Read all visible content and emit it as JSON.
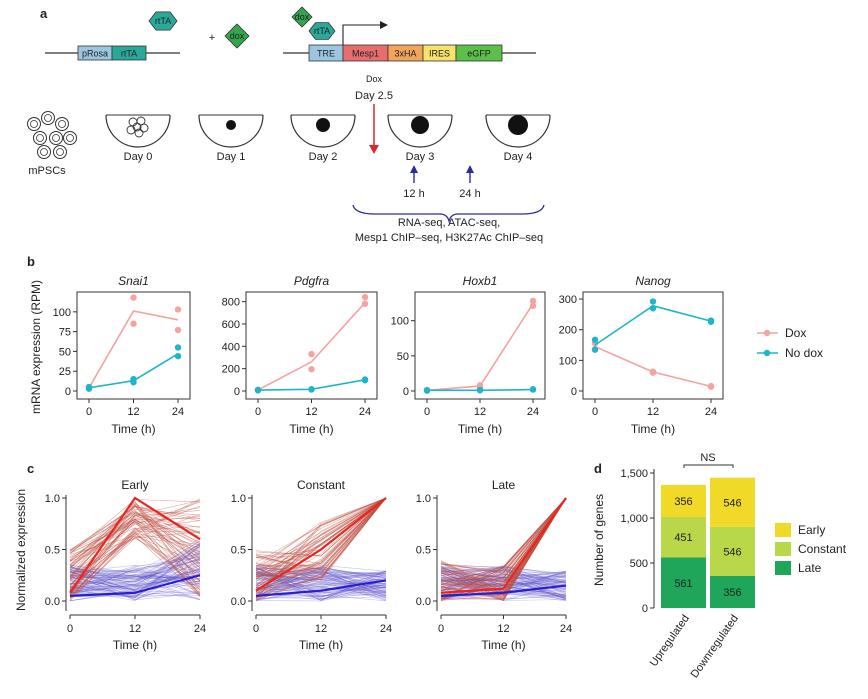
{
  "panels": {
    "a": {
      "letter": "a",
      "construct1": {
        "promoter": "pRosa",
        "gene": "rtTA"
      },
      "protein_rtTA": "rtTA",
      "plus": "+",
      "drug": "dox",
      "construct2": {
        "complex_dox": "dox",
        "complex_rtTA": "rtTA",
        "blocks": [
          "TRE",
          "Mesp1",
          "3xHA",
          "IRES",
          "eGFP"
        ]
      },
      "dox_label": "Dox",
      "dox_day": "Day 2.5",
      "cells_label": "mPSCs",
      "days": [
        "Day 0",
        "Day 1",
        "Day 2",
        "Day 3",
        "Day 4"
      ],
      "timepoints": [
        "12 h",
        "24 h"
      ],
      "assays_line1": "RNA-seq, ATAC-seq,",
      "assays_line2": "Mesp1 ChIP–seq, H3K27Ac ChIP–seq"
    },
    "b": {
      "letter": "b",
      "ylabel": "mRNA expression (RPM)",
      "xlabel": "Time (h)",
      "legend": [
        "Dox",
        "No dox"
      ]
    },
    "c": {
      "letter": "c",
      "ylabel": "Normalized expression",
      "xlabel": "Time (h)"
    },
    "d": {
      "letter": "d",
      "ylabel": "Number of genes",
      "ns_label": "NS",
      "legend": [
        "Early",
        "Constant",
        "Late"
      ]
    }
  },
  "colors": {
    "dox": "#f4a3a0",
    "no_dox": "#1fb5c9",
    "early": "#f1da27",
    "constant": "#b8d84a",
    "late": "#1fa65a",
    "trajectory_red": "#b83a2b",
    "trajectory_blue": "#4a3ec4",
    "dox_arrow": "#d42b2b",
    "timepoint_arrow": "#2d2a9e"
  },
  "chart_data": [
    {
      "type": "line",
      "title": "Snai1",
      "xlabel": "Time (h)",
      "ylabel": "mRNA expression (RPM)",
      "x": [
        0,
        12,
        24
      ],
      "ylim": [
        0,
        120
      ],
      "yticks": [
        0,
        25,
        50,
        75,
        100
      ],
      "series": [
        {
          "name": "Dox",
          "values": [
            4,
            101,
            90
          ],
          "points": [
            [
              0,
              3
            ],
            [
              0,
              5
            ],
            [
              12,
              118
            ],
            [
              12,
              85
            ],
            [
              24,
              103
            ],
            [
              24,
              77
            ]
          ]
        },
        {
          "name": "No dox",
          "values": [
            4,
            13,
            47
          ],
          "points": [
            [
              0,
              3
            ],
            [
              0,
              5
            ],
            [
              12,
              11
            ],
            [
              12,
              15
            ],
            [
              24,
              55
            ],
            [
              24,
              44
            ]
          ]
        }
      ]
    },
    {
      "type": "line",
      "title": "Pdgfra",
      "xlabel": "Time (h)",
      "x": [
        0,
        12,
        24
      ],
      "ylim": [
        0,
        850
      ],
      "yticks": [
        0,
        200,
        400,
        600,
        800
      ],
      "series": [
        {
          "name": "Dox",
          "values": [
            10,
            260,
            790
          ],
          "points": [
            [
              0,
              8
            ],
            [
              0,
              12
            ],
            [
              12,
              330
            ],
            [
              12,
              195
            ],
            [
              24,
              840
            ],
            [
              24,
              780
            ]
          ]
        },
        {
          "name": "No dox",
          "values": [
            8,
            15,
            100
          ],
          "points": [
            [
              0,
              6
            ],
            [
              0,
              9
            ],
            [
              12,
              14
            ],
            [
              12,
              16
            ],
            [
              24,
              103
            ],
            [
              24,
              96
            ]
          ]
        }
      ]
    },
    {
      "type": "line",
      "title": "Hoxb1",
      "xlabel": "Time (h)",
      "x": [
        0,
        12,
        24
      ],
      "ylim": [
        0,
        135
      ],
      "yticks": [
        0,
        50,
        100
      ],
      "series": [
        {
          "name": "Dox",
          "values": [
            1,
            7,
            124
          ],
          "points": [
            [
              0,
              1
            ],
            [
              0,
              1.5
            ],
            [
              12,
              8
            ],
            [
              12,
              5
            ],
            [
              24,
              128
            ],
            [
              24,
              121
            ]
          ]
        },
        {
          "name": "No dox",
          "values": [
            1,
            1,
            2
          ],
          "points": [
            [
              0,
              0.5
            ],
            [
              0,
              1
            ],
            [
              12,
              1
            ],
            [
              12,
              1.5
            ],
            [
              24,
              2
            ],
            [
              24,
              2.5
            ]
          ]
        }
      ]
    },
    {
      "type": "line",
      "title": "Nanog",
      "xlabel": "Time (h)",
      "x": [
        0,
        12,
        24
      ],
      "ylim": [
        0,
        310
      ],
      "yticks": [
        0,
        100,
        200,
        300
      ],
      "series": [
        {
          "name": "Dox",
          "values": [
            145,
            62,
            15
          ],
          "points": [
            [
              0,
              135
            ],
            [
              0,
              155
            ],
            [
              12,
              60
            ],
            [
              12,
              63
            ],
            [
              24,
              14
            ],
            [
              24,
              16
            ]
          ]
        },
        {
          "name": "No dox",
          "values": [
            150,
            278,
            228
          ],
          "points": [
            [
              0,
              135
            ],
            [
              0,
              167
            ],
            [
              12,
              292
            ],
            [
              12,
              270
            ],
            [
              24,
              230
            ],
            [
              24,
              226
            ]
          ]
        }
      ]
    },
    {
      "type": "line",
      "title": "Early",
      "xlabel": "Time (h)",
      "ylabel": "Normalized expression",
      "x": [
        0,
        12,
        24
      ],
      "ylim": [
        0,
        1
      ],
      "yticks": [
        0,
        0.5,
        1.0
      ],
      "series": [
        {
          "name": "",
          "values": [
            0.08,
            1.0,
            0.6
          ]
        },
        {
          "name": "",
          "values": [
            0.05,
            0.08,
            0.25
          ]
        }
      ]
    },
    {
      "type": "line",
      "title": "Constant",
      "xlabel": "Time (h)",
      "x": [
        0,
        12,
        24
      ],
      "ylim": [
        0,
        1
      ],
      "yticks": [
        0,
        0.5,
        1.0
      ],
      "series": [
        {
          "name": "",
          "values": [
            0.1,
            0.5,
            1.0
          ]
        },
        {
          "name": "",
          "values": [
            0.05,
            0.1,
            0.2
          ]
        }
      ]
    },
    {
      "type": "line",
      "title": "Late",
      "xlabel": "Time (h)",
      "x": [
        0,
        12,
        24
      ],
      "ylim": [
        0,
        1
      ],
      "yticks": [
        0,
        0.5,
        1.0
      ],
      "series": [
        {
          "name": "",
          "values": [
            0.08,
            0.12,
            1.0
          ]
        },
        {
          "name": "",
          "values": [
            0.05,
            0.08,
            0.15
          ]
        }
      ]
    },
    {
      "type": "bar",
      "stacked": true,
      "ylabel": "Number of genes",
      "categories": [
        "Upregulated",
        "Downregulated"
      ],
      "ylim": [
        0,
        1500
      ],
      "yticks": [
        0,
        500,
        1000,
        1500
      ],
      "ytick_labels": [
        "0",
        "500",
        "1,000",
        "1,500"
      ],
      "series": [
        {
          "name": "Late",
          "values": [
            561,
            356
          ]
        },
        {
          "name": "Constant",
          "values": [
            451,
            546
          ]
        },
        {
          "name": "Early",
          "values": [
            356,
            546
          ]
        }
      ]
    }
  ]
}
